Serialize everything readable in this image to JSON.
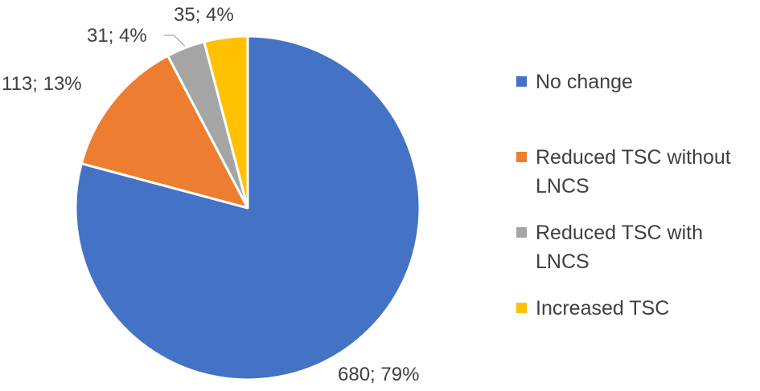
{
  "chart_data": {
    "type": "pie",
    "title": "",
    "slices": [
      {
        "label": "No change",
        "value": 680,
        "percent": "79%",
        "data_label": "680; 79%",
        "color": "#4472C4"
      },
      {
        "label": "Reduced TSC without LNCS",
        "value": 113,
        "percent": "13%",
        "data_label": "113; 13%",
        "color": "#ED7D31"
      },
      {
        "label": "Reduced TSC with LNCS",
        "value": 31,
        "percent": "4%",
        "data_label": "31; 4%",
        "color": "#A5A5A5"
      },
      {
        "label": "Increased TSC",
        "value": 35,
        "percent": "4%",
        "data_label": "35; 4%",
        "color": "#FFC000"
      }
    ],
    "legend_position": "right",
    "start_angle": "12 o'clock",
    "direction": "clockwise"
  }
}
